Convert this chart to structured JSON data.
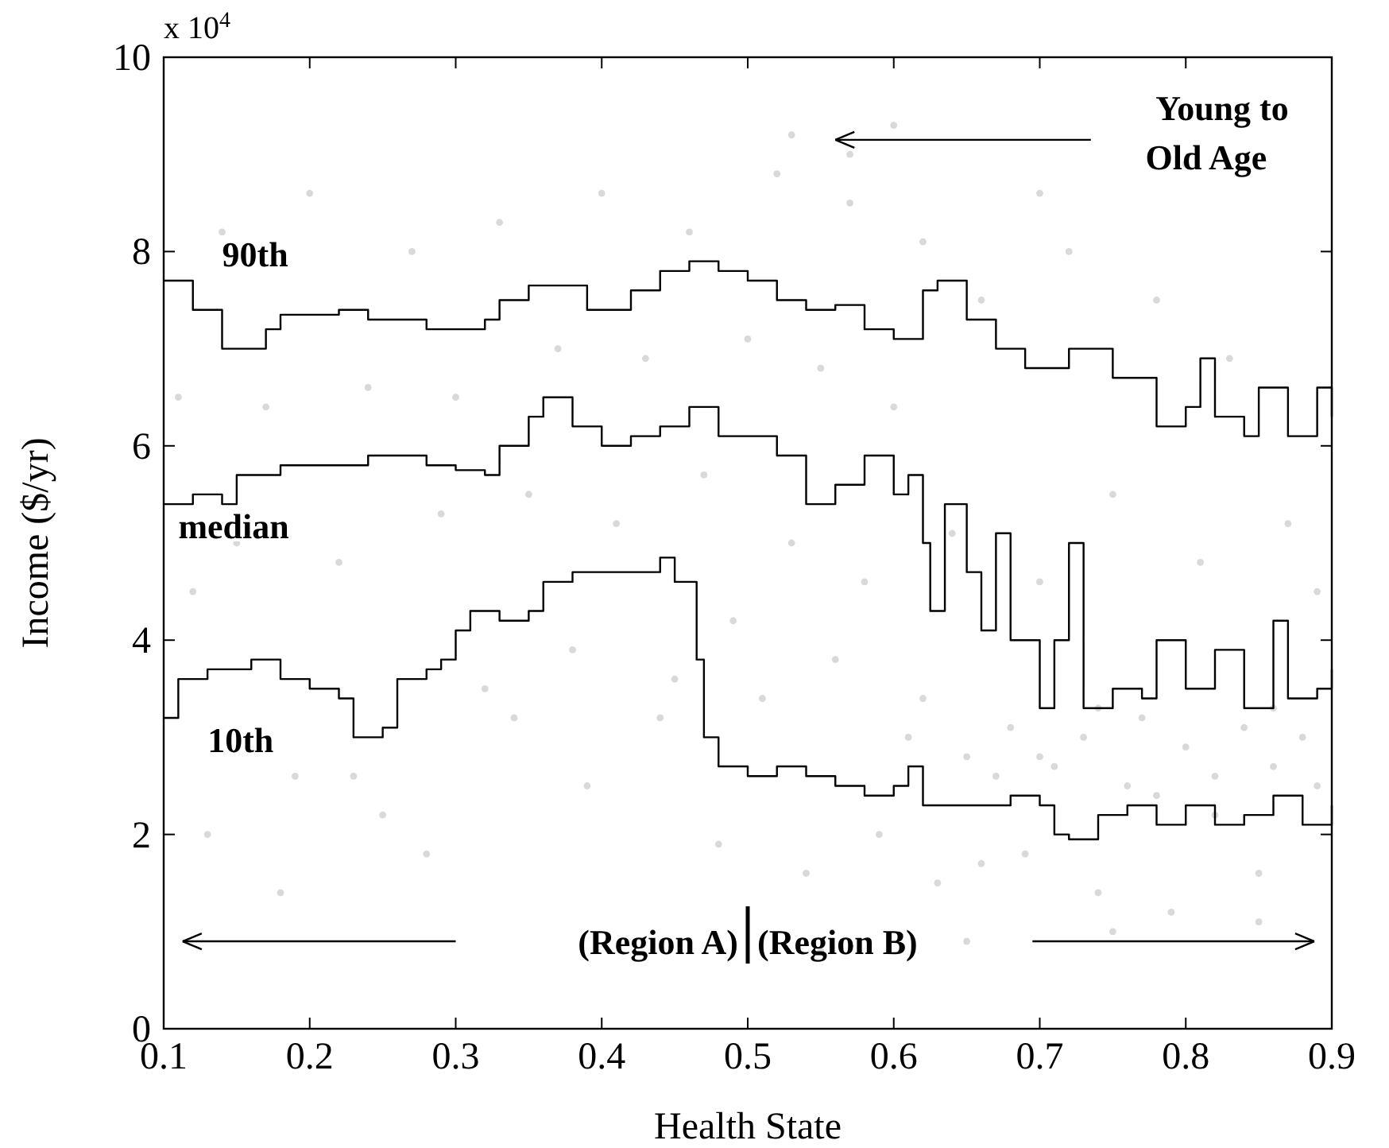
{
  "chart_data": {
    "type": "step",
    "xlabel": "Health State",
    "ylabel": "Income ($/yr)",
    "xlim": [
      0.1,
      0.9
    ],
    "ylim": [
      0,
      10
    ],
    "xticks": [
      0.1,
      0.2,
      0.3,
      0.4,
      0.5,
      0.6,
      0.7,
      0.8,
      0.9
    ],
    "yticks": [
      0,
      2,
      4,
      6,
      8,
      10
    ],
    "grid": false,
    "line_style": "solid",
    "annotations": [
      "x 10$^{4}$",
      "Young to Old Age",
      "(Region A)",
      "(Region B)"
    ],
    "series": [
      {
        "type": "scatter",
        "color": "#d9d9d9",
        "marker": "circle",
        "x": [
          0.11,
          0.12,
          0.14,
          0.15,
          0.17,
          0.19,
          0.2,
          0.22,
          0.24,
          0.25,
          0.27,
          0.29,
          0.3,
          0.32,
          0.33,
          0.35,
          0.37,
          0.38,
          0.4,
          0.41,
          0.43,
          0.44,
          0.46,
          0.47,
          0.49,
          0.5,
          0.51,
          0.52,
          0.53,
          0.54,
          0.55,
          0.56,
          0.57,
          0.58,
          0.59,
          0.6,
          0.61,
          0.62,
          0.63,
          0.64,
          0.65,
          0.66,
          0.67,
          0.68,
          0.69,
          0.7,
          0.71,
          0.72,
          0.73,
          0.74,
          0.75,
          0.76,
          0.77,
          0.78,
          0.79,
          0.8,
          0.81,
          0.82,
          0.83,
          0.84,
          0.85,
          0.86,
          0.87,
          0.88,
          0.89,
          0.13,
          0.18,
          0.23,
          0.28,
          0.34,
          0.39,
          0.45,
          0.48,
          0.53,
          0.57,
          0.62,
          0.66,
          0.7,
          0.74,
          0.78,
          0.82,
          0.86,
          0.89,
          0.6,
          0.7,
          0.8,
          0.85,
          0.75,
          0.65,
          0.55
        ],
        "values": [
          6.5,
          4.5,
          8.2,
          5.0,
          6.4,
          2.6,
          8.6,
          4.8,
          6.6,
          2.2,
          8.0,
          5.3,
          6.5,
          3.5,
          8.3,
          5.5,
          7.0,
          3.9,
          8.6,
          5.2,
          6.9,
          3.2,
          8.2,
          5.7,
          4.2,
          7.1,
          3.4,
          8.8,
          5.0,
          1.6,
          6.8,
          3.8,
          8.5,
          4.6,
          2.0,
          6.4,
          3.0,
          8.1,
          1.5,
          5.1,
          2.8,
          7.5,
          2.6,
          3.1,
          1.8,
          4.6,
          2.7,
          8.0,
          3.0,
          1.4,
          5.5,
          2.5,
          3.2,
          7.5,
          1.2,
          2.9,
          4.8,
          2.6,
          6.9,
          3.1,
          1.1,
          2.7,
          5.2,
          3.0,
          2.5,
          2.0,
          1.4,
          2.6,
          1.8,
          3.2,
          2.5,
          3.6,
          1.9,
          9.2,
          9.0,
          3.4,
          1.7,
          2.8,
          3.3,
          2.4,
          2.2,
          3.3,
          4.5,
          9.3,
          8.6,
          8.9,
          1.6,
          1.0,
          0.9,
          0.8
        ]
      },
      {
        "name": "90th",
        "color": "#000000",
        "x": [
          0.1,
          0.12,
          0.14,
          0.16,
          0.17,
          0.18,
          0.2,
          0.22,
          0.24,
          0.26,
          0.28,
          0.3,
          0.32,
          0.33,
          0.35,
          0.37,
          0.38,
          0.39,
          0.41,
          0.42,
          0.44,
          0.46,
          0.47,
          0.48,
          0.5,
          0.52,
          0.54,
          0.56,
          0.58,
          0.6,
          0.62,
          0.63,
          0.65,
          0.67,
          0.69,
          0.7,
          0.72,
          0.75,
          0.78,
          0.8,
          0.81,
          0.82,
          0.84,
          0.85,
          0.87,
          0.89,
          0.9
        ],
        "values": [
          7.7,
          7.4,
          7.0,
          7.0,
          7.2,
          7.35,
          7.35,
          7.4,
          7.3,
          7.3,
          7.2,
          7.2,
          7.3,
          7.5,
          7.65,
          7.65,
          7.65,
          7.4,
          7.4,
          7.6,
          7.8,
          7.9,
          7.9,
          7.8,
          7.7,
          7.5,
          7.4,
          7.45,
          7.2,
          7.1,
          7.6,
          7.7,
          7.3,
          7.0,
          6.8,
          6.8,
          7.0,
          6.7,
          6.2,
          6.4,
          6.9,
          6.3,
          6.1,
          6.6,
          6.1,
          6.6,
          6.3
        ]
      },
      {
        "name": "median",
        "color": "#000000",
        "x": [
          0.1,
          0.12,
          0.14,
          0.15,
          0.18,
          0.2,
          0.24,
          0.28,
          0.3,
          0.32,
          0.33,
          0.35,
          0.36,
          0.38,
          0.4,
          0.42,
          0.44,
          0.46,
          0.48,
          0.5,
          0.52,
          0.54,
          0.56,
          0.58,
          0.6,
          0.61,
          0.62,
          0.625,
          0.635,
          0.65,
          0.66,
          0.67,
          0.68,
          0.7,
          0.71,
          0.72,
          0.73,
          0.75,
          0.77,
          0.78,
          0.8,
          0.82,
          0.84,
          0.86,
          0.87,
          0.89,
          0.9
        ],
        "values": [
          5.4,
          5.5,
          5.4,
          5.7,
          5.8,
          5.8,
          5.9,
          5.8,
          5.75,
          5.7,
          6.0,
          6.3,
          6.5,
          6.2,
          6.0,
          6.1,
          6.2,
          6.4,
          6.1,
          6.1,
          5.9,
          5.4,
          5.6,
          5.9,
          5.5,
          5.7,
          5.0,
          4.3,
          5.4,
          4.7,
          4.1,
          5.1,
          4.0,
          3.3,
          4.0,
          5.0,
          3.3,
          3.5,
          3.4,
          4.0,
          3.5,
          3.9,
          3.3,
          4.2,
          3.4,
          3.5,
          3.7
        ]
      },
      {
        "name": "10th",
        "color": "#000000",
        "x": [
          0.1,
          0.11,
          0.13,
          0.16,
          0.18,
          0.2,
          0.22,
          0.23,
          0.25,
          0.26,
          0.28,
          0.29,
          0.3,
          0.31,
          0.33,
          0.35,
          0.36,
          0.38,
          0.4,
          0.42,
          0.44,
          0.45,
          0.46,
          0.465,
          0.47,
          0.48,
          0.5,
          0.52,
          0.54,
          0.56,
          0.58,
          0.6,
          0.61,
          0.62,
          0.64,
          0.66,
          0.68,
          0.7,
          0.71,
          0.72,
          0.74,
          0.76,
          0.78,
          0.8,
          0.82,
          0.84,
          0.86,
          0.88,
          0.9
        ],
        "values": [
          3.2,
          3.6,
          3.7,
          3.8,
          3.6,
          3.5,
          3.4,
          3.0,
          3.1,
          3.6,
          3.7,
          3.8,
          4.1,
          4.3,
          4.2,
          4.3,
          4.6,
          4.7,
          4.7,
          4.7,
          4.85,
          4.6,
          4.6,
          3.8,
          3.0,
          2.7,
          2.6,
          2.7,
          2.6,
          2.5,
          2.4,
          2.5,
          2.7,
          2.3,
          2.3,
          2.3,
          2.4,
          2.3,
          2.0,
          1.95,
          2.2,
          2.3,
          2.1,
          2.3,
          2.1,
          2.2,
          2.4,
          2.1,
          2.3
        ]
      }
    ]
  }
}
